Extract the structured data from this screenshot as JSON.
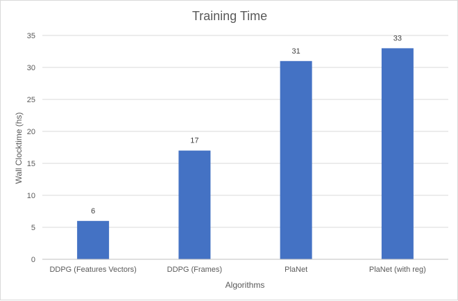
{
  "chart_data": {
    "type": "bar",
    "title": "Training Time",
    "xlabel": "Algorithms",
    "ylabel": "Wall Clocktime (hs)",
    "categories": [
      "DDPG (Features Vectors)",
      "DDPG (Frames)",
      "PlaNet",
      "PlaNet (with reg)"
    ],
    "values": [
      6,
      17,
      31,
      33
    ],
    "data_labels": [
      "6",
      "17",
      "31",
      "33"
    ],
    "ylim": [
      0,
      35
    ],
    "yticks": [
      0,
      5,
      10,
      15,
      20,
      25,
      30,
      35
    ],
    "grid": true,
    "legend": "none",
    "colors": {
      "bar": "#4472c4",
      "grid": "#d9d9d9",
      "axis": "#bfbfbf"
    }
  }
}
